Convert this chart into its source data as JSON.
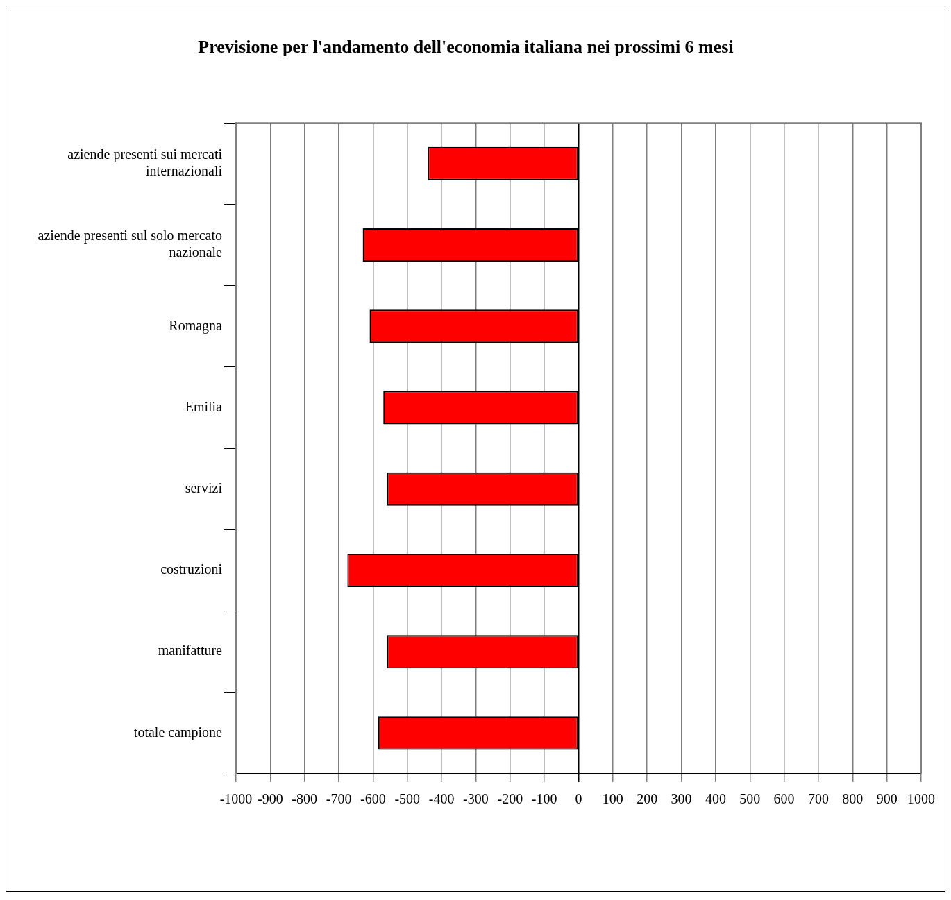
{
  "chart_data": {
    "type": "bar",
    "orientation": "horizontal",
    "title": "Previsione per l'andamento dell'economia italiana nei prossimi 6 mesi",
    "categories": [
      "aziende presenti sui mercati internazionali",
      "aziende presenti sul solo mercato nazionale",
      "Romagna",
      "Emilia",
      "servizi",
      "costruzioni",
      "manifatture",
      "totale campione"
    ],
    "values": [
      -440,
      -630,
      -610,
      -570,
      -560,
      -675,
      -560,
      -585
    ],
    "color": "#ff0000",
    "xlim": [
      -1000,
      1000
    ],
    "xticks": [
      -1000,
      -900,
      -800,
      -700,
      -600,
      -500,
      -400,
      -300,
      -200,
      -100,
      0,
      100,
      200,
      300,
      400,
      500,
      600,
      700,
      800,
      900,
      1000
    ],
    "grid": "x"
  }
}
